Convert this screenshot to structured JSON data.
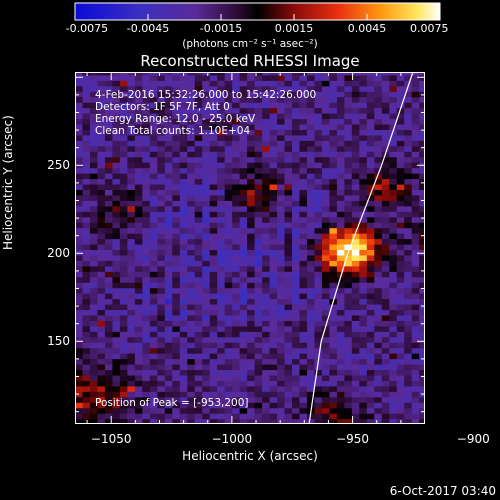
{
  "chart_data": {
    "type": "heatmap",
    "title": "Reconstructed RHESSI Image",
    "xlabel": "Heliocentric X (arcsec)",
    "ylabel": "Heliocentric Y (arcsec)",
    "xlim": [
      -1065,
      -920
    ],
    "ylim": [
      103,
      303
    ],
    "x_ticks": [
      -1050,
      -1000,
      -950,
      -900
    ],
    "y_ticks": [
      150,
      200,
      250
    ],
    "colorbar": {
      "min": -0.0075,
      "max": 0.0075,
      "ticks": [
        "-0.0075",
        "-0.0045",
        "-0.0015",
        "0.0015",
        "0.0045",
        "0.0075"
      ],
      "units": "(photons cm⁻² s⁻¹ asec⁻²)"
    },
    "annotations": [
      "4-Feb-2016 15:32:26.000 to 15:42:26.000",
      "Detectors: 1F 5F 7F, Att 0",
      "Energy Range: 12.0 - 25.0 keV",
      "Clean    Total counts: 1.10E+04"
    ],
    "sources": [
      {
        "x": -953,
        "y": 200,
        "value": 0.0075
      },
      {
        "x": -990,
        "y": 232,
        "value": 0.0032
      },
      {
        "x": -938,
        "y": 236,
        "value": 0.003
      },
      {
        "x": -918,
        "y": 210,
        "value": 0.0022
      },
      {
        "x": -1048,
        "y": 222,
        "value": 0.0018
      },
      {
        "x": -1060,
        "y": 118,
        "value": 0.003
      },
      {
        "x": -960,
        "y": 108,
        "value": 0.0025
      }
    ],
    "limb": [
      [
        -968,
        103
      ],
      [
        -963,
        150
      ],
      [
        -952,
        200
      ],
      [
        -938,
        250
      ],
      [
        -925,
        303
      ]
    ],
    "peak_label": "Position of Peak = [-953,200]"
  },
  "footer": "6-Oct-2017 03:40"
}
